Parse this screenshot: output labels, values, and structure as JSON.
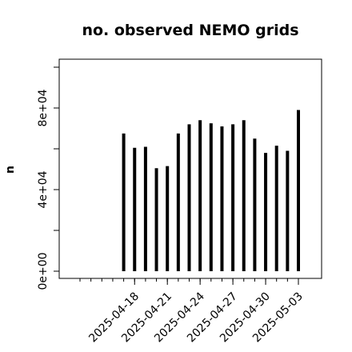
{
  "chart_data": {
    "type": "bar",
    "title": "no. observed NEMO grids",
    "xlabel": "",
    "ylabel": "n",
    "ylim": [
      0,
      100000
    ],
    "grid": false,
    "y_ticks": [
      {
        "value": 0,
        "label": "0e+00"
      },
      {
        "value": 40000,
        "label": "4e+04"
      },
      {
        "value": 80000,
        "label": "8e+04"
      }
    ],
    "x_ticks": [
      "2025-04-18",
      "2025-04-21",
      "2025-04-24",
      "2025-04-27",
      "2025-04-30",
      "2025-05-03"
    ],
    "x_range": [
      "2025-04-13",
      "2025-05-03"
    ],
    "points": [
      {
        "x": "2025-04-17",
        "y": 67500
      },
      {
        "x": "2025-04-18",
        "y": 60500
      },
      {
        "x": "2025-04-19",
        "y": 61000
      },
      {
        "x": "2025-04-20",
        "y": 50500
      },
      {
        "x": "2025-04-21",
        "y": 51500
      },
      {
        "x": "2025-04-22",
        "y": 67500
      },
      {
        "x": "2025-04-23",
        "y": 72000
      },
      {
        "x": "2025-04-24",
        "y": 74000
      },
      {
        "x": "2025-04-25",
        "y": 72500
      },
      {
        "x": "2025-04-26",
        "y": 71000
      },
      {
        "x": "2025-04-27",
        "y": 72000
      },
      {
        "x": "2025-04-28",
        "y": 74000
      },
      {
        "x": "2025-04-29",
        "y": 65000
      },
      {
        "x": "2025-04-30",
        "y": 58000
      },
      {
        "x": "2025-05-01",
        "y": 61500
      },
      {
        "x": "2025-05-02",
        "y": 59000
      },
      {
        "x": "2025-05-03",
        "y": 79000
      }
    ]
  }
}
